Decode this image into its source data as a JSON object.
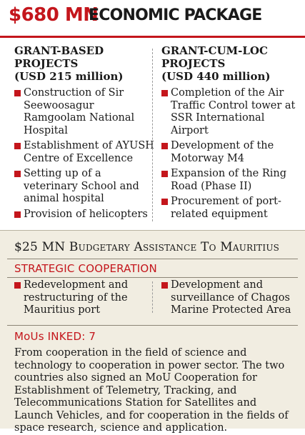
{
  "header": {
    "amount": "$680 MN",
    "rest": "ECONOMIC PACKAGE"
  },
  "grant_based": {
    "title": "GRANT-BASED PROJECTS",
    "subtitle": "(USD 215 million)",
    "items": [
      "Construction of Sir Seewoosagur Ramgoolam National Hospital",
      "Establishment of AYUSH Centre of Excellence",
      "Setting up of a veterinary School and animal hospital",
      "Provision of helicopters"
    ]
  },
  "grant_cum_loc": {
    "title": "GRANT-CUM-LOC PROJECTS",
    "subtitle": "(USD 440 million)",
    "items": [
      "Completion of the Air Traffic Control tower at SSR International Airport",
      "Development of the Motorway M4",
      "Expansion of the Ring Road (Phase II)",
      "Procurement of port-related equipment"
    ]
  },
  "budgetary": {
    "text": "$25 MN Budgetary Assistance To Mauritius"
  },
  "strategic": {
    "title": "STRATEGIC COOPERATION",
    "items": [
      "Redevelopment and restructuring of the Mauritius port",
      "Development and surveillance of Chagos Marine Protected Area"
    ]
  },
  "mous": {
    "title": "MoUs INKED: 7",
    "text": "From cooperation in the field of science and technology to cooperation in power sector. The two countries also signed an MoU Cooperation for Establishment of Telemetry, Tracking, and Telecommunications Station for Satellites and Launch Vehicles, and for cooperation in the fields of space research, science and application."
  },
  "colors": {
    "accent": "#c4161c",
    "shaded_bg": "#f1ede1"
  }
}
